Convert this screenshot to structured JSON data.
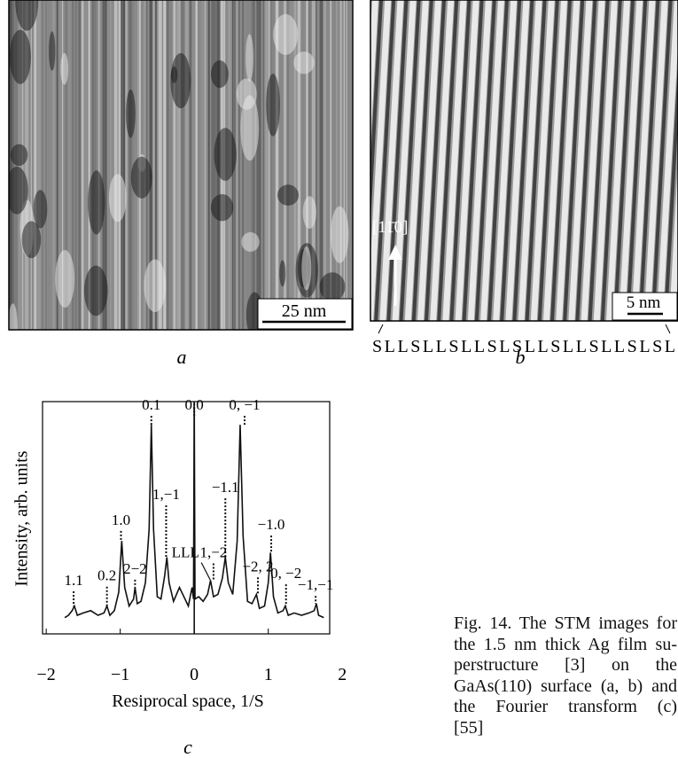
{
  "panels": {
    "a": {
      "label": "a",
      "scale_bar": "25 nm"
    },
    "b": {
      "label": "b",
      "scale_bar": "5 nm",
      "direction": "[11̄0]",
      "sequence": "SLLSLLSLLSLSLLSLLSLLSLSL"
    }
  },
  "chart_data": {
    "type": "line",
    "label": "c",
    "xlabel": "Resiprocal space, 1/S",
    "ylabel": "Intensity, arb. units",
    "xlim": [
      -2.05,
      1.83
    ],
    "ylim": [
      0,
      1
    ],
    "xticks": [
      {
        "value": -2,
        "label": "−2"
      },
      {
        "value": -1,
        "label": "−1"
      },
      0,
      1,
      2
    ],
    "x": [
      -1.75,
      -1.7,
      -1.65,
      -1.62,
      -1.58,
      -1.5,
      -1.4,
      -1.3,
      -1.22,
      -1.18,
      -1.14,
      -1.08,
      -1.02,
      -0.98,
      -0.94,
      -0.88,
      -0.82,
      -0.8,
      -0.77,
      -0.72,
      -0.66,
      -0.61,
      -0.58,
      -0.55,
      -0.5,
      -0.45,
      -0.4,
      -0.37,
      -0.34,
      -0.28,
      -0.2,
      -0.14,
      -0.08,
      -0.03,
      -0.01,
      0,
      0.01,
      0.06,
      0.12,
      0.18,
      0.22,
      0.26,
      0.32,
      0.38,
      0.42,
      0.46,
      0.52,
      0.58,
      0.62,
      0.66,
      0.72,
      0.78,
      0.84,
      0.88,
      0.95,
      1,
      1.03,
      1.07,
      1.13,
      1.2,
      1.23,
      1.27,
      1.35,
      1.45,
      1.55,
      1.62,
      1.65,
      1.68,
      1.75
    ],
    "series": [
      {
        "color": "#111111",
        "values": [
          0.07,
          0.08,
          0.1,
          0.12,
          0.08,
          0.09,
          0.1,
          0.08,
          0.09,
          0.12,
          0.08,
          0.1,
          0.18,
          0.4,
          0.2,
          0.12,
          0.15,
          0.2,
          0.13,
          0.14,
          0.22,
          0.45,
          0.9,
          0.45,
          0.16,
          0.15,
          0.25,
          0.33,
          0.22,
          0.14,
          0.2,
          0.16,
          0.12,
          0.2,
          0.15,
          1.0,
          0.15,
          0.16,
          0.14,
          0.17,
          0.23,
          0.16,
          0.17,
          0.24,
          0.33,
          0.22,
          0.17,
          0.4,
          0.9,
          0.42,
          0.14,
          0.13,
          0.17,
          0.11,
          0.12,
          0.22,
          0.35,
          0.16,
          0.09,
          0.1,
          0.12,
          0.08,
          0.09,
          0.08,
          0.09,
          0.1,
          0.13,
          0.08,
          0.07
        ]
      }
    ],
    "annotations": [
      {
        "text": "0.1",
        "x": -0.58,
        "y": 0.965,
        "peak": 0.9
      },
      {
        "text": "0.0",
        "x": 0,
        "y": 0.965,
        "peak": 1.0
      },
      {
        "text": "0, −1",
        "x": 0.68,
        "y": 0.965,
        "peak": 0.9
      },
      {
        "text": "1,−1",
        "x": -0.38,
        "y": 0.58,
        "peak": 0.33
      },
      {
        "text": "−1.1",
        "x": 0.42,
        "y": 0.61,
        "peak": 0.33
      },
      {
        "text": "1.0",
        "x": -0.99,
        "y": 0.47,
        "peak": 0.4
      },
      {
        "text": "−1.0",
        "x": 1.04,
        "y": 0.45,
        "peak": 0.35
      },
      {
        "text": "LLL",
        "x": -0.12,
        "y": 0.33,
        "target": [
          0.22,
          0.23
        ]
      },
      {
        "text": "1,−2",
        "x": 0.26,
        "y": 0.33,
        "peak": 0.23
      },
      {
        "text": "2−2",
        "x": -0.8,
        "y": 0.26,
        "peak": 0.2
      },
      {
        "text": "−2, 2",
        "x": 0.86,
        "y": 0.27,
        "peak": 0.17
      },
      {
        "text": "0.2",
        "x": -1.18,
        "y": 0.23,
        "peak": 0.12
      },
      {
        "text": "1.1",
        "x": -1.63,
        "y": 0.21,
        "peak": 0.12
      },
      {
        "text": "0, −2",
        "x": 1.24,
        "y": 0.24,
        "peak": 0.12
      },
      {
        "text": "−1,−1",
        "x": 1.64,
        "y": 0.19,
        "peak": 0.13
      }
    ]
  },
  "caption": {
    "lines": [
      "Fig. 14. The STM images for",
      "the 1.5 nm thick Ag film su-",
      "perstructure [3] on the",
      "GaAs(110) surface (a, b) and",
      "the Fourier transform (c)",
      "[55]"
    ]
  }
}
